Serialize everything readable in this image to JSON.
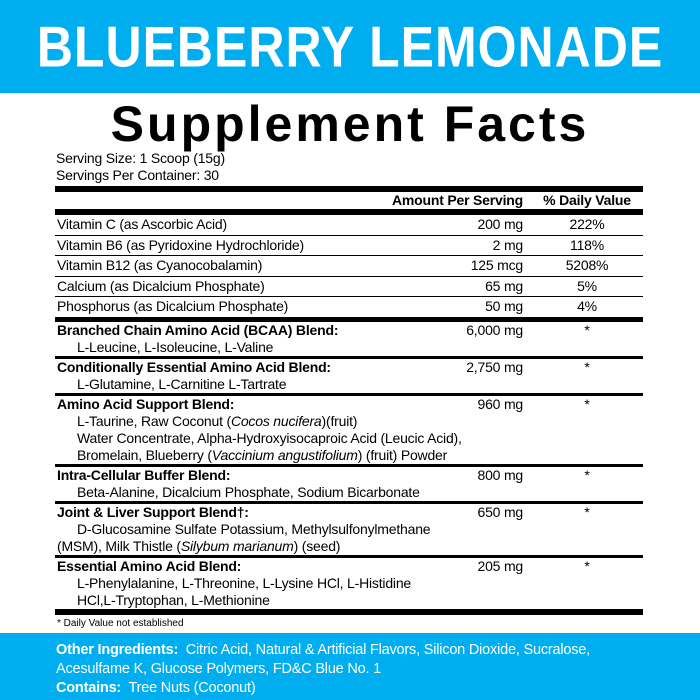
{
  "banner": {
    "title": "BLUEBERRY LEMONADE",
    "color": "#00AEEF"
  },
  "title": "Supplement Facts",
  "serving_size": "Serving Size: 1 Scoop (15g)",
  "servings_per_container": "Servings Per Container: 30",
  "headers": {
    "amount": "Amount Per Serving",
    "dv": "% Daily Value"
  },
  "vitamins": [
    {
      "name": "Vitamin C (as Ascorbic Acid)",
      "amount": "200 mg",
      "dv": "222%"
    },
    {
      "name": "Vitamin B6 (as Pyridoxine Hydrochloride)",
      "amount": "2 mg",
      "dv": "118%"
    },
    {
      "name": "Vitamin B12 (as Cyanocobalamin)",
      "amount": "125 mcg",
      "dv": "5208%"
    },
    {
      "name": "Calcium (as Dicalcium Phosphate)",
      "amount": "65 mg",
      "dv": "5%"
    },
    {
      "name": "Phosphorus (as Dicalcium Phosphate)",
      "amount": "50 mg",
      "dv": "4%"
    }
  ],
  "blends": [
    {
      "name": "Branched Chain Amino Acid (BCAA) Blend:",
      "amount": "6,000 mg",
      "dv": "*",
      "lines": [
        "L-Leucine, L-Isoleucine, L-Valine"
      ]
    },
    {
      "name": "Conditionally Essential Amino Acid Blend:",
      "amount": "2,750 mg",
      "dv": "*",
      "lines": [
        "L-Glutamine, L-Carnitine L-Tartrate"
      ]
    },
    {
      "name": "Amino Acid Support Blend:",
      "amount": "960 mg",
      "dv": "*",
      "lines_html": true,
      "l1a": "L-Taurine, Raw Coconut (",
      "l1i": "Cocos nucifera",
      "l1b": ")(fruit)",
      "l2": "Water Concentrate, Alpha-Hydroxyisocaproic Acid (Leucic Acid),",
      "l3a": "Bromelain, Blueberry (",
      "l3i": "Vaccinium angustifolium",
      "l3b": ") (fruit) Powder"
    },
    {
      "name": "Intra-Cellular Buffer Blend:",
      "amount": "800 mg",
      "dv": "*",
      "lines": [
        "Beta-Alanine, Dicalcium Phosphate, Sodium Bicarbonate"
      ]
    },
    {
      "name": "Joint & Liver Support Blend†:",
      "amount": "650 mg",
      "dv": "*",
      "l1": "D-Glucosamine Sulfate Potassium, Methylsulfonylmethane",
      "l2a": "(MSM), Milk Thistle (",
      "l2i": "Silybum marianum",
      "l2b": ") (seed)"
    },
    {
      "name": "Essential Amino Acid Blend:",
      "amount": "205 mg",
      "dv": "*",
      "lines": [
        "L-Phenylalanine, L-Threonine, L-Lysine HCl, L-Histidine",
        "HCl,L-Tryptophan, L-Methionine"
      ]
    }
  ],
  "footnote": "* Daily Value not established",
  "other_ingredients": {
    "label": "Other Ingredients:",
    "text": "Citric Acid, Natural & Artificial Flavors, Silicon Dioxide, Sucralose,",
    "text2": "Acesulfame K, Glucose Polymers, FD&C Blue No. 1"
  },
  "contains": {
    "label": "Contains:",
    "text": "Tree Nuts (Coconut)"
  }
}
